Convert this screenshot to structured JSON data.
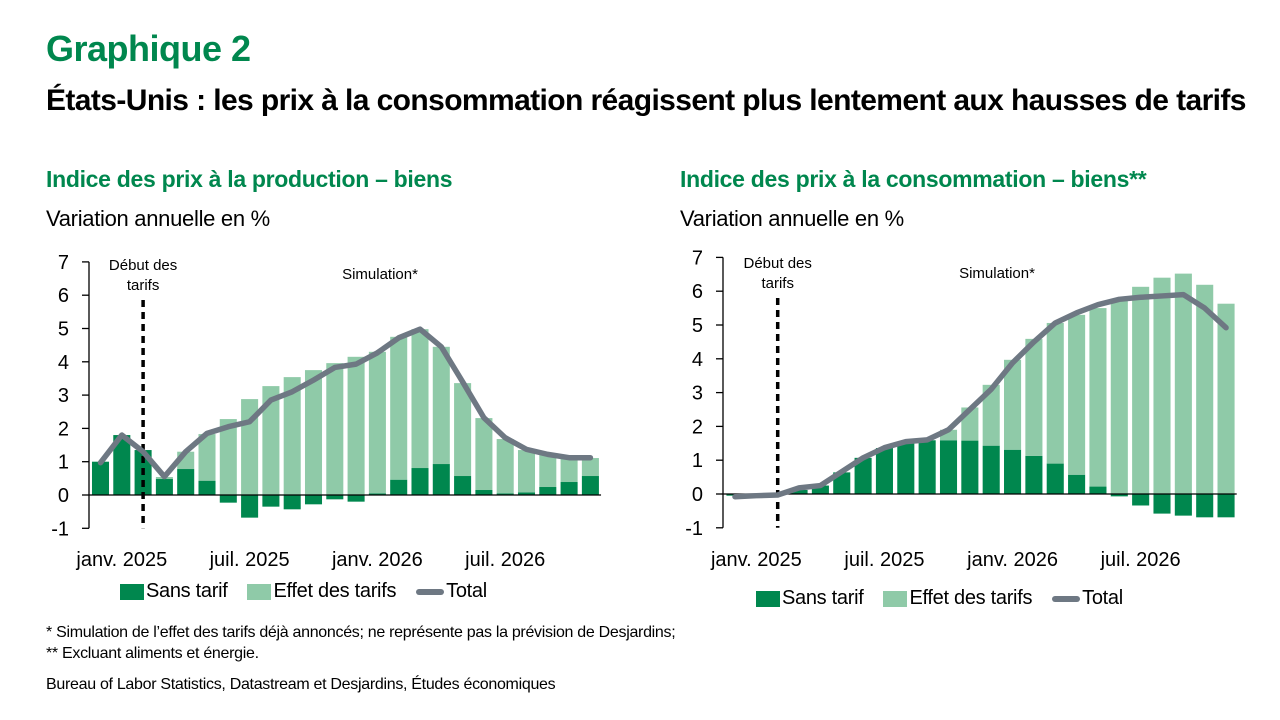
{
  "header": {
    "figure_label": "Graphique 2",
    "title": "États-Unis : les prix à la consommation réagissent plus lentement aux hausses de tarifs"
  },
  "colors": {
    "sans_tarif": "#00874E",
    "effet_tarifs": "#8FCAA8",
    "total": "#6E7883",
    "title_green": "#00874E"
  },
  "chart_data": [
    {
      "type": "bar",
      "stacked": true,
      "title": "Indice des prix à la production – biens",
      "ylabel": "Variation annuelle en %",
      "xlabel": "",
      "ylim": [
        -1,
        7
      ],
      "yticks": [
        7,
        6,
        5,
        4,
        3,
        2,
        1,
        0,
        -1
      ],
      "xtick_labels": [
        {
          "label": "janv. 2025",
          "index": 1
        },
        {
          "label": "juil. 2025",
          "index": 7
        },
        {
          "label": "janv. 2026",
          "index": 13
        },
        {
          "label": "juil. 2026",
          "index": 19
        }
      ],
      "n_periods": 24,
      "tariff_start_index": 2,
      "annotations": {
        "tariff_start": "Début des tarifs",
        "simulation": "Simulation*"
      },
      "legend": [
        "Sans tarif",
        "Effet des tarifs",
        "Total"
      ],
      "legend_position": "bottom",
      "series": [
        {
          "name": "Sans tarif",
          "kind": "bar",
          "values": [
            1.0,
            1.8,
            1.35,
            0.48,
            0.78,
            0.43,
            -0.23,
            -0.68,
            -0.35,
            -0.43,
            -0.28,
            -0.13,
            -0.2,
            0.05,
            0.46,
            0.81,
            0.93,
            0.57,
            0.15,
            0.05,
            0.08,
            0.24,
            0.39,
            0.57
          ]
        },
        {
          "name": "Effet des tarifs",
          "kind": "bar",
          "values": [
            0.0,
            0.0,
            0.0,
            0.06,
            0.52,
            1.4,
            2.28,
            2.88,
            3.27,
            3.54,
            3.75,
            3.96,
            4.15,
            4.25,
            4.29,
            4.17,
            3.52,
            2.79,
            2.16,
            1.63,
            1.27,
            0.96,
            0.74,
            0.54
          ]
        },
        {
          "name": "Total",
          "kind": "line",
          "values": [
            0.97,
            1.8,
            1.3,
            0.55,
            1.3,
            1.85,
            2.05,
            2.2,
            2.85,
            3.1,
            3.45,
            3.83,
            3.93,
            4.27,
            4.72,
            4.98,
            4.45,
            3.4,
            2.32,
            1.72,
            1.37,
            1.22,
            1.12,
            1.12
          ]
        }
      ]
    },
    {
      "type": "bar",
      "stacked": true,
      "title": "Indice des prix à la consommation – biens**",
      "ylabel": "Variation annuelle en %",
      "xlabel": "",
      "ylim": [
        -1,
        7
      ],
      "yticks": [
        7,
        6,
        5,
        4,
        3,
        2,
        1,
        0,
        -1
      ],
      "xtick_labels": [
        {
          "label": "janv. 2025",
          "index": 1
        },
        {
          "label": "juil. 2025",
          "index": 7
        },
        {
          "label": "janv. 2026",
          "index": 13
        },
        {
          "label": "juil. 2026",
          "index": 19
        }
      ],
      "n_periods": 24,
      "tariff_start_index": 2,
      "annotations": {
        "tariff_start": "Début des tarifs",
        "simulation": "Simulation*"
      },
      "legend": [
        "Sans tarif",
        "Effet des tarifs",
        "Total"
      ],
      "legend_position": "bottom",
      "series": [
        {
          "name": "Sans tarif",
          "kind": "bar",
          "values": [
            -0.05,
            0.0,
            0.0,
            0.12,
            0.25,
            0.64,
            1.07,
            1.36,
            1.51,
            1.59,
            1.59,
            1.58,
            1.43,
            1.31,
            1.13,
            0.9,
            0.57,
            0.22,
            -0.07,
            -0.34,
            -0.58,
            -0.64,
            -0.69,
            -0.69
          ]
        },
        {
          "name": "Effet des tarifs",
          "kind": "bar",
          "values": [
            0.0,
            0.0,
            0.0,
            0.0,
            0.0,
            0.0,
            0.0,
            0.0,
            0.0,
            0.0,
            0.31,
            0.98,
            1.8,
            2.66,
            3.46,
            4.16,
            4.73,
            5.28,
            5.76,
            6.13,
            6.4,
            6.52,
            6.19,
            5.63
          ]
        },
        {
          "name": "Total",
          "kind": "line",
          "values": [
            -0.08,
            -0.05,
            -0.03,
            0.18,
            0.25,
            0.66,
            1.07,
            1.37,
            1.55,
            1.6,
            1.9,
            2.5,
            3.1,
            3.88,
            4.5,
            5.06,
            5.36,
            5.6,
            5.76,
            5.82,
            5.86,
            5.9,
            5.5,
            4.92
          ]
        }
      ]
    }
  ],
  "footnotes": {
    "note1": "* Simulation de l’effet des tarifs déjà annoncés; ne représente pas la prévision de Desjardins;",
    "note2": "** Excluant aliments et énergie.",
    "source": "Bureau of Labor Statistics, Datastream et Desjardins, Études économiques"
  }
}
